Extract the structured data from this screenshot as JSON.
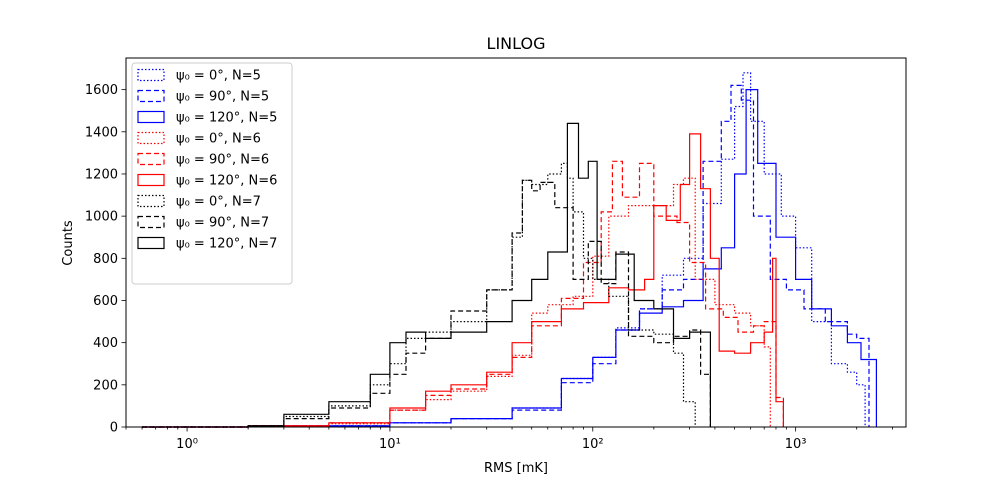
{
  "chart_data": {
    "type": "histogram",
    "title": "LINLOG",
    "xlabel": "RMS [mK]",
    "ylabel": "Counts",
    "xscale": "log",
    "xlim": [
      0.5,
      3500
    ],
    "ylim": [
      0,
      1750
    ],
    "x_tick_values": [
      1,
      10,
      100,
      1000
    ],
    "x_ticks": [
      "10⁰",
      "10¹",
      "10²",
      "10³"
    ],
    "y_ticks": [
      0,
      200,
      400,
      600,
      800,
      1000,
      1200,
      1400,
      1600
    ],
    "grid": false,
    "legend_position": "upper-left",
    "colors": {
      "N5": "#0000ff",
      "N6": "#ff0000",
      "N7": "#000000"
    },
    "series": [
      {
        "name": "ψ₀ = 0°, N=5",
        "color": "#0000ff",
        "style": "dotted",
        "points": [
          [
            0.6,
            0
          ],
          [
            2,
            5
          ],
          [
            10,
            20
          ],
          [
            20,
            40
          ],
          [
            40,
            90
          ],
          [
            70,
            230
          ],
          [
            100,
            330
          ],
          [
            130,
            470
          ],
          [
            170,
            560
          ],
          [
            220,
            720
          ],
          [
            280,
            800
          ],
          [
            350,
            1060
          ],
          [
            430,
            1270
          ],
          [
            500,
            1520
          ],
          [
            550,
            1680
          ],
          [
            600,
            1450
          ],
          [
            700,
            1200
          ],
          [
            850,
            1000
          ],
          [
            1000,
            850
          ],
          [
            1200,
            500
          ],
          [
            1500,
            300
          ],
          [
            1800,
            260
          ],
          [
            2000,
            200
          ],
          [
            2200,
            0
          ]
        ]
      },
      {
        "name": "ψ₀ = 90°, N=5",
        "color": "#0000ff",
        "style": "dashed",
        "points": [
          [
            0.6,
            0
          ],
          [
            2,
            5
          ],
          [
            10,
            20
          ],
          [
            20,
            40
          ],
          [
            40,
            80
          ],
          [
            70,
            210
          ],
          [
            100,
            300
          ],
          [
            130,
            460
          ],
          [
            170,
            560
          ],
          [
            220,
            650
          ],
          [
            280,
            700
          ],
          [
            350,
            1260
          ],
          [
            430,
            1450
          ],
          [
            480,
            1620
          ],
          [
            540,
            1550
          ],
          [
            620,
            1000
          ],
          [
            750,
            700
          ],
          [
            900,
            650
          ],
          [
            1100,
            560
          ],
          [
            1400,
            500
          ],
          [
            1800,
            440
          ],
          [
            2000,
            420
          ],
          [
            2300,
            0
          ]
        ]
      },
      {
        "name": "ψ₀ = 120°, N=5",
        "color": "#0000ff",
        "style": "solid",
        "points": [
          [
            0.6,
            0
          ],
          [
            2,
            5
          ],
          [
            10,
            20
          ],
          [
            20,
            40
          ],
          [
            40,
            90
          ],
          [
            70,
            230
          ],
          [
            100,
            330
          ],
          [
            130,
            460
          ],
          [
            170,
            540
          ],
          [
            220,
            570
          ],
          [
            280,
            600
          ],
          [
            350,
            750
          ],
          [
            430,
            850
          ],
          [
            500,
            1200
          ],
          [
            570,
            1600
          ],
          [
            650,
            1250
          ],
          [
            800,
            900
          ],
          [
            1000,
            700
          ],
          [
            1200,
            560
          ],
          [
            1500,
            480
          ],
          [
            1800,
            400
          ],
          [
            2100,
            320
          ],
          [
            2500,
            0
          ]
        ]
      },
      {
        "name": "ψ₀ = 0°, N=6",
        "color": "#ff0000",
        "style": "dotted",
        "points": [
          [
            0.6,
            0
          ],
          [
            2,
            5
          ],
          [
            5,
            15
          ],
          [
            10,
            80
          ],
          [
            15,
            130
          ],
          [
            20,
            170
          ],
          [
            30,
            240
          ],
          [
            40,
            340
          ],
          [
            50,
            540
          ],
          [
            60,
            580
          ],
          [
            80,
            620
          ],
          [
            100,
            810
          ],
          [
            120,
            1000
          ],
          [
            150,
            1050
          ],
          [
            200,
            1050
          ],
          [
            250,
            1150
          ],
          [
            280,
            1180
          ],
          [
            320,
            700
          ],
          [
            400,
            580
          ],
          [
            500,
            540
          ],
          [
            600,
            480
          ],
          [
            700,
            380
          ],
          [
            750,
            0
          ]
        ]
      },
      {
        "name": "ψ₀ = 90°, N=6",
        "color": "#ff0000",
        "style": "dashed",
        "points": [
          [
            0.6,
            0
          ],
          [
            2,
            5
          ],
          [
            5,
            20
          ],
          [
            10,
            80
          ],
          [
            15,
            150
          ],
          [
            20,
            180
          ],
          [
            30,
            250
          ],
          [
            40,
            330
          ],
          [
            50,
            480
          ],
          [
            70,
            610
          ],
          [
            90,
            780
          ],
          [
            110,
            1020
          ],
          [
            125,
            1260
          ],
          [
            140,
            1090
          ],
          [
            170,
            1250
          ],
          [
            200,
            1000
          ],
          [
            260,
            970
          ],
          [
            300,
            780
          ],
          [
            360,
            560
          ],
          [
            440,
            520
          ],
          [
            520,
            450
          ],
          [
            620,
            480
          ],
          [
            700,
            500
          ],
          [
            800,
            140
          ],
          [
            870,
            0
          ]
        ]
      },
      {
        "name": "ψ₀ = 120°, N=6",
        "color": "#ff0000",
        "style": "solid",
        "points": [
          [
            0.6,
            0
          ],
          [
            2,
            5
          ],
          [
            5,
            20
          ],
          [
            10,
            90
          ],
          [
            15,
            170
          ],
          [
            20,
            200
          ],
          [
            30,
            260
          ],
          [
            40,
            400
          ],
          [
            50,
            500
          ],
          [
            70,
            560
          ],
          [
            90,
            590
          ],
          [
            120,
            660
          ],
          [
            150,
            650
          ],
          [
            180,
            700
          ],
          [
            200,
            1050
          ],
          [
            230,
            980
          ],
          [
            270,
            1150
          ],
          [
            300,
            1390
          ],
          [
            340,
            1130
          ],
          [
            380,
            800
          ],
          [
            420,
            360
          ],
          [
            500,
            350
          ],
          [
            600,
            400
          ],
          [
            700,
            450
          ],
          [
            770,
            800
          ],
          [
            800,
            120
          ],
          [
            870,
            0
          ]
        ]
      },
      {
        "name": "ψ₀ = 0°, N=7",
        "color": "#000000",
        "style": "dotted",
        "points": [
          [
            0.6,
            0
          ],
          [
            2,
            5
          ],
          [
            3,
            50
          ],
          [
            5,
            100
          ],
          [
            8,
            200
          ],
          [
            10,
            300
          ],
          [
            12,
            420
          ],
          [
            15,
            450
          ],
          [
            20,
            500
          ],
          [
            30,
            650
          ],
          [
            40,
            900
          ],
          [
            45,
            1170
          ],
          [
            50,
            1150
          ],
          [
            60,
            1200
          ],
          [
            70,
            1250
          ],
          [
            75,
            1180
          ],
          [
            80,
            1020
          ],
          [
            90,
            800
          ],
          [
            100,
            700
          ],
          [
            120,
            620
          ],
          [
            150,
            460
          ],
          [
            200,
            440
          ],
          [
            250,
            350
          ],
          [
            280,
            120
          ],
          [
            320,
            0
          ]
        ]
      },
      {
        "name": "ψ₀ = 90°, N=7",
        "color": "#000000",
        "style": "dashed",
        "points": [
          [
            0.6,
            0
          ],
          [
            2,
            5
          ],
          [
            3,
            40
          ],
          [
            5,
            90
          ],
          [
            8,
            160
          ],
          [
            10,
            250
          ],
          [
            12,
            350
          ],
          [
            15,
            420
          ],
          [
            20,
            550
          ],
          [
            30,
            650
          ],
          [
            40,
            920
          ],
          [
            45,
            1170
          ],
          [
            50,
            1120
          ],
          [
            55,
            1160
          ],
          [
            65,
            1040
          ],
          [
            80,
            700
          ],
          [
            95,
            880
          ],
          [
            110,
            680
          ],
          [
            130,
            830
          ],
          [
            150,
            430
          ],
          [
            200,
            400
          ],
          [
            250,
            430
          ],
          [
            300,
            460
          ],
          [
            340,
            250
          ],
          [
            380,
            0
          ]
        ]
      },
      {
        "name": "ψ₀ = 120°, N=7",
        "color": "#000000",
        "style": "solid",
        "points": [
          [
            0.6,
            0
          ],
          [
            2,
            5
          ],
          [
            3,
            60
          ],
          [
            5,
            120
          ],
          [
            8,
            250
          ],
          [
            10,
            400
          ],
          [
            12,
            450
          ],
          [
            15,
            420
          ],
          [
            20,
            450
          ],
          [
            30,
            500
          ],
          [
            40,
            600
          ],
          [
            50,
            700
          ],
          [
            60,
            830
          ],
          [
            75,
            1440
          ],
          [
            85,
            1180
          ],
          [
            95,
            1260
          ],
          [
            105,
            700
          ],
          [
            130,
            820
          ],
          [
            160,
            600
          ],
          [
            200,
            560
          ],
          [
            250,
            420
          ],
          [
            300,
            450
          ],
          [
            380,
            0
          ]
        ]
      }
    ]
  }
}
